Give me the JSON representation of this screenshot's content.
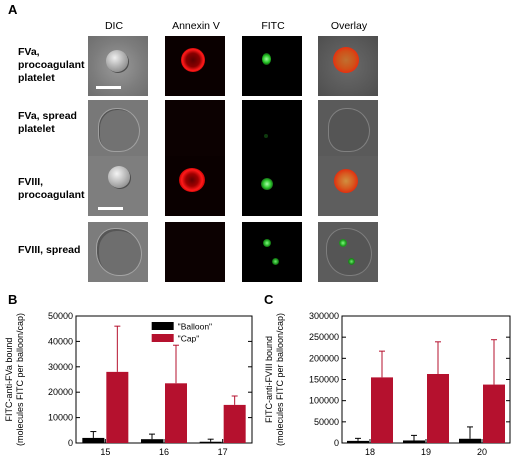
{
  "panel_a": {
    "letter": "A",
    "columns": [
      "DIC",
      "Annexin V",
      "FITC",
      "Overlay"
    ],
    "rows": [
      {
        "label_lines": [
          "FVa,",
          "procoagulant",
          "platelet"
        ]
      },
      {
        "label_lines": [
          "FVa, spread",
          "platelet"
        ]
      },
      {
        "label_lines": [
          "FVIII,",
          "procoagulant"
        ]
      },
      {
        "label_lines": [
          "FVIII, spread"
        ]
      }
    ]
  },
  "chart_data": [
    {
      "panel": "B",
      "type": "bar",
      "categories": [
        "15",
        "16",
        "17"
      ],
      "series": [
        {
          "name": "\"Balloon\"",
          "color": "#000000",
          "values": [
            2000,
            1500,
            500
          ],
          "errors": [
            2500,
            2000,
            1000
          ]
        },
        {
          "name": "\"Cap\"",
          "color": "#b5112e",
          "values": [
            28000,
            23500,
            15000
          ],
          "errors": [
            18000,
            15000,
            3500
          ]
        }
      ],
      "ylabel_lines": [
        "FITC-anti-FVa bound",
        "(molecules FITC per balloon/cap)"
      ],
      "ylim": [
        0,
        50000
      ],
      "yticks": [
        0,
        10000,
        20000,
        30000,
        40000,
        50000
      ],
      "legend": "top-center"
    },
    {
      "panel": "C",
      "type": "bar",
      "categories": [
        "18",
        "19",
        "20"
      ],
      "series": [
        {
          "name": "\"Balloon\"",
          "color": "#000000",
          "values": [
            5000,
            6000,
            10000
          ],
          "errors": [
            6000,
            12000,
            28000
          ]
        },
        {
          "name": "\"Cap\"",
          "color": "#b5112e",
          "values": [
            155000,
            163000,
            138000
          ],
          "errors": [
            62000,
            76000,
            106000
          ]
        }
      ],
      "ylabel_lines": [
        "FITC-anti-FVIII bound",
        "(molecules FITC per balloon/cap)"
      ],
      "ylim": [
        0,
        300000
      ],
      "yticks": [
        0,
        50000,
        100000,
        150000,
        200000,
        250000,
        300000
      ]
    }
  ]
}
